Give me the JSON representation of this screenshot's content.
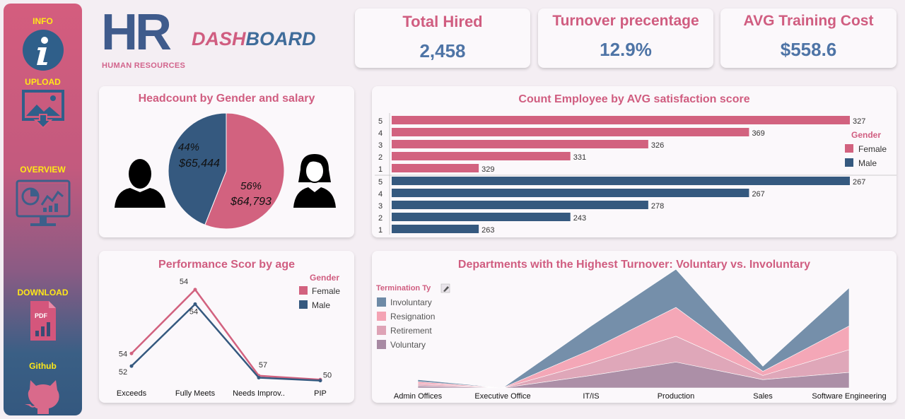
{
  "sidebar": {
    "items": [
      {
        "label": "INFO",
        "icon": "info-icon"
      },
      {
        "label": "UPLOAD",
        "icon": "upload-image-icon"
      },
      {
        "label": "OVERVIEW",
        "icon": "monitor-dashboard-icon"
      },
      {
        "label": "DOWNLOAD",
        "icon": "pdf-icon"
      },
      {
        "label": "Github",
        "icon": "github-icon"
      }
    ]
  },
  "logo": {
    "hr": "HR",
    "subtitle": "HUMAN RESOURCES",
    "dash": "DASH",
    "board": "BOARD"
  },
  "kpis": [
    {
      "title": "Total Hired",
      "value": "2,458"
    },
    {
      "title": "Turnover precentage",
      "value": "12.9%"
    },
    {
      "title": "AVG Training Cost",
      "value": "$558.6"
    }
  ],
  "colors": {
    "female": "#d2627f",
    "male": "#35597f",
    "accent": "#d05d80",
    "value_blue": "#4e74a6"
  },
  "headcount": {
    "title": "Headcount by Gender and salary",
    "chart_data": {
      "type": "pie",
      "slices": [
        {
          "label": "Female",
          "pct": "56%",
          "salary": "$64,793",
          "value": 56
        },
        {
          "label": "Male",
          "pct": "44%",
          "salary": "$65,444",
          "value": 44
        }
      ]
    }
  },
  "satisfaction": {
    "title": "Count Employee by AVG satisfaction score",
    "legend_title": "Gender",
    "legend": [
      "Female",
      "Male"
    ],
    "chart_data": {
      "type": "bar",
      "orientation": "horizontal",
      "categories": [
        "5",
        "4",
        "3",
        "2",
        "1"
      ],
      "series": [
        {
          "name": "Female",
          "values": [
            327,
            369,
            326,
            331,
            329
          ],
          "bar_scale": [
            1.0,
            0.78,
            0.56,
            0.39,
            0.19
          ]
        },
        {
          "name": "Male",
          "values": [
            267,
            267,
            278,
            243,
            263
          ],
          "bar_scale": [
            1.0,
            0.78,
            0.56,
            0.39,
            0.19
          ]
        }
      ]
    }
  },
  "performance": {
    "title": "Performance Scor by age",
    "legend_title": "Gender",
    "legend": [
      "Female",
      "Male"
    ],
    "chart_data": {
      "type": "line",
      "categories": [
        "Exceeds",
        "Fully Meets",
        "Needs Improv..",
        "PIP"
      ],
      "series": [
        {
          "name": "Female",
          "values": [
            54,
            54,
            57,
            50
          ],
          "labels": [
            "54",
            "54",
            "57",
            "50"
          ],
          "plot": [
            0.29,
            0.95,
            0.06,
            0.02
          ]
        },
        {
          "name": "Male",
          "values": [
            52,
            54,
            null,
            null
          ],
          "labels": [
            "52",
            "54",
            "",
            ""
          ],
          "plot": [
            0.16,
            0.8,
            0.04,
            0.01
          ]
        }
      ]
    }
  },
  "departments": {
    "title": "Departments with the Highest Turnover: Voluntary vs. Involuntary",
    "legend_title": "Termination Ty",
    "legend": [
      {
        "name": "Involuntary",
        "color": "#6e8aa6"
      },
      {
        "name": "Resignation",
        "color": "#f4a3b4"
      },
      {
        "name": "Retirement",
        "color": "#dea3b6"
      },
      {
        "name": "Voluntary",
        "color": "#a88aa3"
      }
    ],
    "chart_data": {
      "type": "area",
      "stacked": true,
      "categories": [
        "Admin Offices",
        "Executive Office",
        "IT/IS",
        "Production",
        "Sales",
        "Software Engineering"
      ],
      "series": [
        {
          "name": "Voluntary",
          "values": [
            0.02,
            0,
            0.12,
            0.25,
            0.08,
            0.15
          ]
        },
        {
          "name": "Retirement",
          "values": [
            0.02,
            0,
            0.12,
            0.25,
            0.04,
            0.22
          ]
        },
        {
          "name": "Resignation",
          "values": [
            0.02,
            0,
            0.13,
            0.28,
            0.04,
            0.23
          ]
        },
        {
          "name": "Involuntary",
          "values": [
            0.02,
            0,
            0.23,
            0.37,
            0.05,
            0.37
          ]
        }
      ]
    }
  }
}
